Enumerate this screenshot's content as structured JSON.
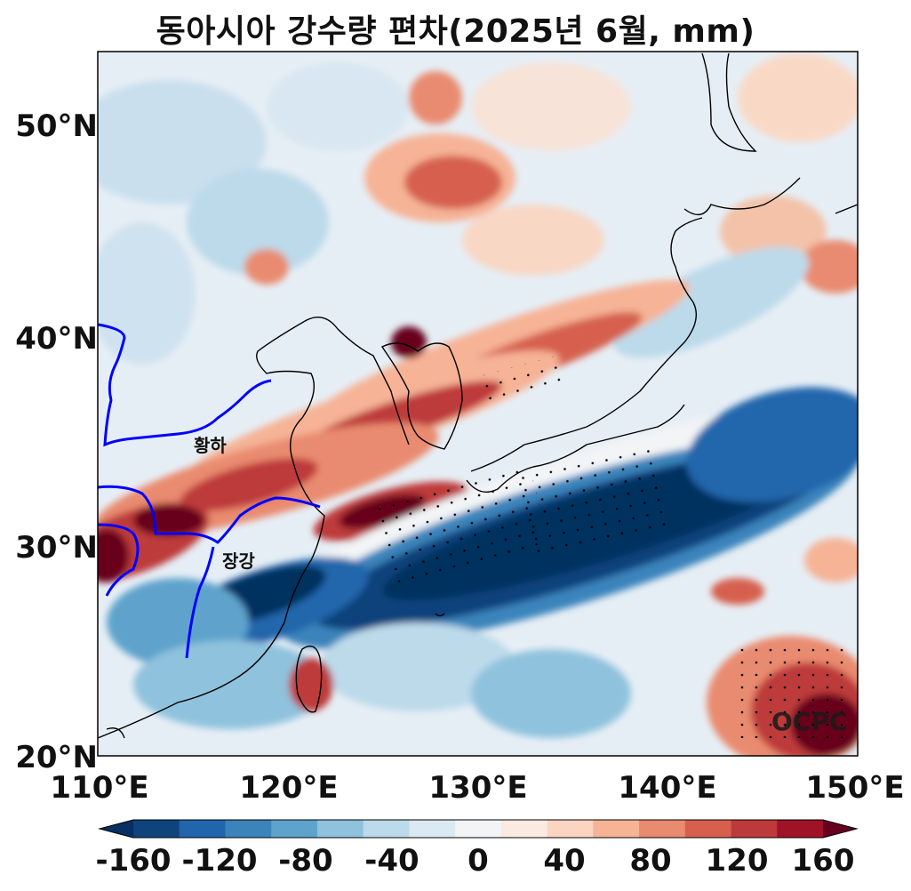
{
  "title": "동아시아 강수량 편차(2025년 6월, mm)",
  "map": {
    "lon_range": [
      110,
      150
    ],
    "lat_range": [
      20,
      53.5
    ],
    "lat_ticks": [
      "50°N",
      "40°N",
      "30°N",
      "20°N"
    ],
    "lon_ticks": [
      "110°E",
      "120°E",
      "130°E",
      "140°E",
      "150°E"
    ],
    "river_labels": {
      "yellow_river": "황하",
      "yangtze": "장강"
    },
    "watermark": "OCPC",
    "river_color": "#0000ff",
    "coast_color": "#000000"
  },
  "colorbar": {
    "tick_labels": [
      "-160",
      "-120",
      "-80",
      "-40",
      "0",
      "40",
      "80",
      "120",
      "160"
    ],
    "colors": [
      "#053061",
      "#0f437b",
      "#2166ac",
      "#3a84bb",
      "#5ea3cc",
      "#8fc2dd",
      "#bcdaea",
      "#dbe9f2",
      "#f2f4f6",
      "#faeae2",
      "#fbd5c1",
      "#f6b396",
      "#e98b6f",
      "#d6604d",
      "#bd3a3a",
      "#a01228",
      "#67001f"
    ]
  }
}
